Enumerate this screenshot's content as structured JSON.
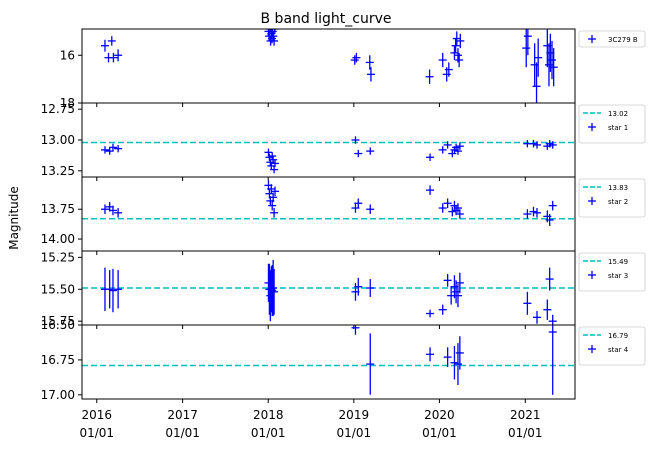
{
  "chart_data": {
    "type": "scatter",
    "title": "B band light_curve",
    "ylabel": "Magnitude",
    "x_ticks": [
      {
        "date": "2016-01-01",
        "line1": "2016",
        "line2": "01/01"
      },
      {
        "date": "2017-01-01",
        "line1": "2017",
        "line2": "01/01"
      },
      {
        "date": "2018-01-01",
        "line1": "2018",
        "line2": "01/01"
      },
      {
        "date": "2019-01-01",
        "line1": "2019",
        "line2": "01/01"
      },
      {
        "date": "2020-01-01",
        "line1": "2020",
        "line2": "01/01"
      },
      {
        "date": "2021-01-01",
        "line1": "2021",
        "line2": "01/01"
      }
    ],
    "xlim": [
      "2015-10-30",
      "2021-08-01"
    ],
    "colors": {
      "points": "#0000ff",
      "reference": "#00bfbf",
      "axes": "#000000"
    },
    "panels": [
      {
        "id": "3c279",
        "ylim": [
          18,
          14.9
        ],
        "yticks": [
          16,
          18
        ],
        "ytick_labels": [
          "16",
          "18"
        ],
        "legend": {
          "series_label": "3C279 B"
        },
        "series": {
          "name": "3C279 B",
          "points": [
            {
              "x": "2016-02-05",
              "y": 15.6,
              "e": 0.25
            },
            {
              "x": "2016-02-20",
              "y": 16.1,
              "e": 0.2
            },
            {
              "x": "2016-03-05",
              "y": 15.4,
              "e": 0.2
            },
            {
              "x": "2016-03-12",
              "y": 16.1,
              "e": 0.2
            },
            {
              "x": "2016-04-01",
              "y": 16.0,
              "e": 0.25
            },
            {
              "x": "2018-01-02",
              "y": 15.0,
              "e": 0.2
            },
            {
              "x": "2018-01-05",
              "y": 15.2,
              "e": 0.2
            },
            {
              "x": "2018-01-08",
              "y": 14.9,
              "e": 0.2
            },
            {
              "x": "2018-01-11",
              "y": 15.4,
              "e": 0.2
            },
            {
              "x": "2018-01-14",
              "y": 15.1,
              "e": 0.2
            },
            {
              "x": "2018-01-17",
              "y": 15.3,
              "e": 0.2
            },
            {
              "x": "2018-01-20",
              "y": 15.0,
              "e": 0.2
            },
            {
              "x": "2018-01-23",
              "y": 15.2,
              "e": 0.2
            },
            {
              "x": "2018-01-26",
              "y": 15.4,
              "e": 0.2
            },
            {
              "x": "2018-01-29",
              "y": 14.9,
              "e": 0.2
            },
            {
              "x": "2019-01-05",
              "y": 16.2,
              "e": 0.2
            },
            {
              "x": "2019-01-12",
              "y": 16.1,
              "e": 0.2
            },
            {
              "x": "2019-03-10",
              "y": 16.3,
              "e": 0.3
            },
            {
              "x": "2019-03-15",
              "y": 16.8,
              "e": 0.3
            },
            {
              "x": "2019-11-20",
              "y": 16.9,
              "e": 0.3
            },
            {
              "x": "2020-01-15",
              "y": 16.2,
              "e": 0.3
            },
            {
              "x": "2020-02-01",
              "y": 16.8,
              "e": 0.3
            },
            {
              "x": "2020-02-10",
              "y": 16.6,
              "e": 0.3
            },
            {
              "x": "2020-03-05",
              "y": 15.9,
              "e": 0.3
            },
            {
              "x": "2020-03-10",
              "y": 15.6,
              "e": 0.3
            },
            {
              "x": "2020-03-15",
              "y": 15.3,
              "e": 0.3
            },
            {
              "x": "2020-03-20",
              "y": 16.0,
              "e": 0.3
            },
            {
              "x": "2020-03-25",
              "y": 16.2,
              "e": 0.3
            },
            {
              "x": "2020-03-30",
              "y": 15.4,
              "e": 0.3
            },
            {
              "x": "2021-01-05",
              "y": 15.7,
              "e": 0.8
            },
            {
              "x": "2021-01-12",
              "y": 15.2,
              "e": 0.8
            },
            {
              "x": "2021-02-10",
              "y": 16.4,
              "e": 0.9
            },
            {
              "x": "2021-02-18",
              "y": 17.3,
              "e": 1.0
            },
            {
              "x": "2021-02-25",
              "y": 16.1,
              "e": 0.8
            },
            {
              "x": "2021-04-05",
              "y": 15.6,
              "e": 0.9
            },
            {
              "x": "2021-04-12",
              "y": 16.4,
              "e": 0.9
            },
            {
              "x": "2021-04-18",
              "y": 15.9,
              "e": 0.8
            },
            {
              "x": "2021-04-25",
              "y": 16.2,
              "e": 0.8
            },
            {
              "x": "2021-05-02",
              "y": 16.5,
              "e": 0.8
            }
          ]
        }
      },
      {
        "id": "star1",
        "ylim": [
          13.3,
          12.7
        ],
        "yticks": [
          12.75,
          13.0,
          13.25
        ],
        "ytick_labels": [
          "12.75",
          "13.00",
          "13.25"
        ],
        "reference": {
          "value": 13.02,
          "label": "13.02"
        },
        "legend": {
          "ref_label": "13.02",
          "series_label": "star 1"
        },
        "series": {
          "name": "star 1",
          "points": [
            {
              "x": "2016-02-05",
              "y": 13.08,
              "e": 0.03
            },
            {
              "x": "2016-02-25",
              "y": 13.09,
              "e": 0.03
            },
            {
              "x": "2016-03-10",
              "y": 13.06,
              "e": 0.03
            },
            {
              "x": "2016-04-01",
              "y": 13.07,
              "e": 0.03
            },
            {
              "x": "2018-01-02",
              "y": 13.1,
              "e": 0.03
            },
            {
              "x": "2018-01-06",
              "y": 13.14,
              "e": 0.03
            },
            {
              "x": "2018-01-10",
              "y": 13.18,
              "e": 0.03
            },
            {
              "x": "2018-01-14",
              "y": 13.21,
              "e": 0.03
            },
            {
              "x": "2018-01-18",
              "y": 13.13,
              "e": 0.03
            },
            {
              "x": "2018-01-22",
              "y": 13.16,
              "e": 0.03
            },
            {
              "x": "2018-01-26",
              "y": 13.24,
              "e": 0.03
            },
            {
              "x": "2018-01-30",
              "y": 13.19,
              "e": 0.03
            },
            {
              "x": "2019-01-08",
              "y": 13.0,
              "e": 0.03
            },
            {
              "x": "2019-01-20",
              "y": 13.11,
              "e": 0.03
            },
            {
              "x": "2019-03-12",
              "y": 13.09,
              "e": 0.03
            },
            {
              "x": "2019-11-22",
              "y": 13.14,
              "e": 0.03
            },
            {
              "x": "2020-01-15",
              "y": 13.08,
              "e": 0.03
            },
            {
              "x": "2020-02-05",
              "y": 13.04,
              "e": 0.03
            },
            {
              "x": "2020-02-25",
              "y": 13.11,
              "e": 0.03
            },
            {
              "x": "2020-03-05",
              "y": 13.08,
              "e": 0.03
            },
            {
              "x": "2020-03-12",
              "y": 13.06,
              "e": 0.03
            },
            {
              "x": "2020-03-20",
              "y": 13.09,
              "e": 0.03
            },
            {
              "x": "2020-03-28",
              "y": 13.05,
              "e": 0.03
            },
            {
              "x": "2021-01-10",
              "y": 13.03,
              "e": 0.03
            },
            {
              "x": "2021-02-05",
              "y": 13.03,
              "e": 0.03
            },
            {
              "x": "2021-02-20",
              "y": 13.04,
              "e": 0.03
            },
            {
              "x": "2021-04-05",
              "y": 13.05,
              "e": 0.03
            },
            {
              "x": "2021-04-15",
              "y": 13.03,
              "e": 0.03
            },
            {
              "x": "2021-04-28",
              "y": 13.04,
              "e": 0.03
            }
          ]
        }
      },
      {
        "id": "star2",
        "ylim": [
          14.1,
          13.48
        ],
        "yticks": [
          13.75,
          14.0
        ],
        "ytick_labels": [
          "13.75",
          "14.00"
        ],
        "reference": {
          "value": 13.83,
          "label": "13.83"
        },
        "legend": {
          "ref_label": "13.83",
          "series_label": "star 2"
        },
        "series": {
          "name": "star 2",
          "points": [
            {
              "x": "2016-02-05",
              "y": 13.75,
              "e": 0.04
            },
            {
              "x": "2016-02-25",
              "y": 13.73,
              "e": 0.04
            },
            {
              "x": "2016-03-10",
              "y": 13.76,
              "e": 0.04
            },
            {
              "x": "2016-04-01",
              "y": 13.78,
              "e": 0.04
            },
            {
              "x": "2018-01-02",
              "y": 13.55,
              "e": 0.04
            },
            {
              "x": "2018-01-06",
              "y": 13.62,
              "e": 0.04
            },
            {
              "x": "2018-01-10",
              "y": 13.68,
              "e": 0.04
            },
            {
              "x": "2018-01-14",
              "y": 13.58,
              "e": 0.04
            },
            {
              "x": "2018-01-18",
              "y": 13.72,
              "e": 0.04
            },
            {
              "x": "2018-01-22",
              "y": 13.65,
              "e": 0.04
            },
            {
              "x": "2018-01-26",
              "y": 13.78,
              "e": 0.04
            },
            {
              "x": "2018-01-30",
              "y": 13.6,
              "e": 0.04
            },
            {
              "x": "2019-01-08",
              "y": 13.74,
              "e": 0.04
            },
            {
              "x": "2019-01-20",
              "y": 13.7,
              "e": 0.04
            },
            {
              "x": "2019-03-12",
              "y": 13.75,
              "e": 0.04
            },
            {
              "x": "2019-11-22",
              "y": 13.59,
              "e": 0.04
            },
            {
              "x": "2020-01-15",
              "y": 13.74,
              "e": 0.04
            },
            {
              "x": "2020-02-05",
              "y": 13.7,
              "e": 0.04
            },
            {
              "x": "2020-02-25",
              "y": 13.77,
              "e": 0.04
            },
            {
              "x": "2020-03-05",
              "y": 13.72,
              "e": 0.04
            },
            {
              "x": "2020-03-12",
              "y": 13.76,
              "e": 0.04
            },
            {
              "x": "2020-03-20",
              "y": 13.74,
              "e": 0.04
            },
            {
              "x": "2020-03-28",
              "y": 13.79,
              "e": 0.04
            },
            {
              "x": "2021-01-10",
              "y": 13.79,
              "e": 0.04
            },
            {
              "x": "2021-02-05",
              "y": 13.77,
              "e": 0.04
            },
            {
              "x": "2021-02-20",
              "y": 13.78,
              "e": 0.04
            },
            {
              "x": "2021-04-05",
              "y": 13.81,
              "e": 0.05
            },
            {
              "x": "2021-04-15",
              "y": 13.84,
              "e": 0.05
            },
            {
              "x": "2021-04-28",
              "y": 13.72,
              "e": 0.04
            }
          ]
        }
      },
      {
        "id": "star3",
        "ylim": [
          15.78,
          15.2
        ],
        "yticks": [
          15.25,
          15.5,
          15.75
        ],
        "ytick_labels": [
          "15.25",
          "15.50",
          "15.75"
        ],
        "reference": {
          "value": 15.49,
          "label": "15.49"
        },
        "legend": {
          "ref_label": "15.49",
          "series_label": "star 3"
        },
        "series": {
          "name": "star 3",
          "points": [
            {
              "x": "2016-02-05",
              "y": 15.5,
              "e": 0.17
            },
            {
              "x": "2016-02-25",
              "y": 15.5,
              "e": 0.15
            },
            {
              "x": "2016-03-10",
              "y": 15.51,
              "e": 0.17
            },
            {
              "x": "2016-04-01",
              "y": 15.5,
              "e": 0.15
            },
            {
              "x": "2018-01-02",
              "y": 15.45,
              "e": 0.15
            },
            {
              "x": "2018-01-06",
              "y": 15.5,
              "e": 0.2
            },
            {
              "x": "2018-01-10",
              "y": 15.55,
              "e": 0.2
            },
            {
              "x": "2018-01-14",
              "y": 15.5,
              "e": 0.18
            },
            {
              "x": "2018-01-18",
              "y": 15.51,
              "e": 0.2
            },
            {
              "x": "2018-01-22",
              "y": 15.49,
              "e": 0.22
            },
            {
              "x": "2018-01-26",
              "y": 15.52,
              "e": 0.18
            },
            {
              "x": "2019-01-08",
              "y": 15.52,
              "e": 0.07
            },
            {
              "x": "2019-01-20",
              "y": 15.48,
              "e": 0.07
            },
            {
              "x": "2019-03-12",
              "y": 15.49,
              "e": 0.07
            },
            {
              "x": "2019-11-22",
              "y": 15.69,
              "e": 0.03
            },
            {
              "x": "2020-01-15",
              "y": 15.66,
              "e": 0.04
            },
            {
              "x": "2020-02-05",
              "y": 15.43,
              "e": 0.05
            },
            {
              "x": "2020-02-20",
              "y": 15.55,
              "e": 0.07
            },
            {
              "x": "2020-03-05",
              "y": 15.48,
              "e": 0.09
            },
            {
              "x": "2020-03-12",
              "y": 15.52,
              "e": 0.09
            },
            {
              "x": "2020-03-20",
              "y": 15.55,
              "e": 0.09
            },
            {
              "x": "2020-03-28",
              "y": 15.45,
              "e": 0.08
            },
            {
              "x": "2021-01-10",
              "y": 15.61,
              "e": 0.09
            },
            {
              "x": "2021-02-20",
              "y": 15.72,
              "e": 0.05
            },
            {
              "x": "2021-04-05",
              "y": 15.66,
              "e": 0.08
            },
            {
              "x": "2021-04-15",
              "y": 15.42,
              "e": 0.09
            },
            {
              "x": "2021-04-28",
              "y": 15.75,
              "e": 0.05
            }
          ]
        }
      },
      {
        "id": "star4",
        "ylim": [
          17.03,
          16.5
        ],
        "yticks": [
          16.5,
          16.75,
          17.0
        ],
        "ytick_labels": [
          "16.50",
          "16.75",
          "17.00"
        ],
        "reference": {
          "value": 16.79,
          "label": "16.79"
        },
        "legend": {
          "ref_label": "16.79",
          "series_label": "star 4"
        },
        "series": {
          "name": "star 4",
          "points": [
            {
              "x": "2019-01-08",
              "y": 16.52,
              "e": 0.05
            },
            {
              "x": "2019-03-12",
              "y": 16.78,
              "e": 0.22
            },
            {
              "x": "2019-11-22",
              "y": 16.71,
              "e": 0.05
            },
            {
              "x": "2020-02-05",
              "y": 16.73,
              "e": 0.07
            },
            {
              "x": "2020-03-05",
              "y": 16.77,
              "e": 0.12
            },
            {
              "x": "2020-03-20",
              "y": 16.78,
              "e": 0.15
            },
            {
              "x": "2020-03-28",
              "y": 16.7,
              "e": 0.12
            },
            {
              "x": "2021-04-28",
              "y": 16.55,
              "e": 0.45
            }
          ]
        }
      }
    ]
  }
}
